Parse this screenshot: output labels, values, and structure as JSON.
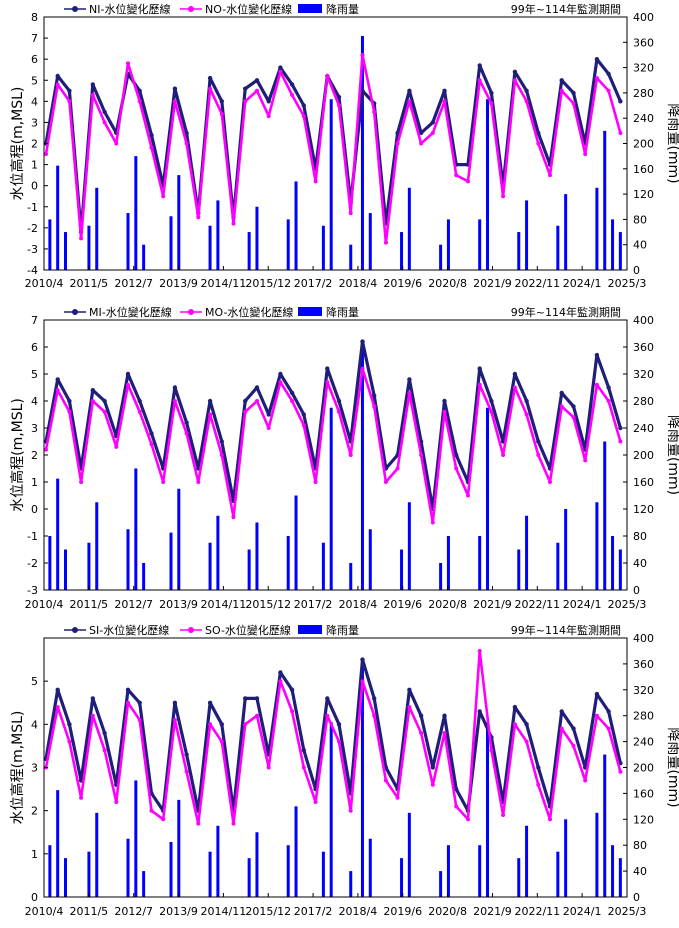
{
  "page": {
    "background": "#ffffff"
  },
  "colors": {
    "inner_series": "#1f1f7a",
    "outer_series": "#ff00ff",
    "rain": "#0000ff"
  },
  "chart_data": [
    {
      "type": "line",
      "id": "north",
      "xticks": [
        "2010/4",
        "2011/5",
        "2012/7",
        "2013/9",
        "2014/11",
        "2015/12",
        "2017/2",
        "2018/4",
        "2019/6",
        "2020/8",
        "2021/9",
        "2022/11",
        "2024/1",
        "2025/3"
      ],
      "xlim": [
        2010.25,
        2025.17
      ],
      "ylim": [
        -4,
        8
      ],
      "yticks": [
        -4,
        -3,
        -2,
        -1,
        0,
        1,
        2,
        3,
        4,
        5,
        6,
        7,
        8
      ],
      "y2lim": [
        0,
        400
      ],
      "y2ticks": [
        0,
        40,
        80,
        120,
        160,
        200,
        240,
        280,
        320,
        360,
        400
      ],
      "ylabel": "水位高程(m,MSL)",
      "y2label": "降雨量(mm)",
      "period_note": "99年~114年監測期間",
      "legend": [
        "NI-水位變化歷線",
        "NO-水位變化歷線",
        "降雨量"
      ],
      "series": [
        {
          "name": "NI-水位變化歷線",
          "color": "#1f1f7a",
          "x": [
            2010.3,
            2010.6,
            2010.9,
            2011.2,
            2011.5,
            2011.8,
            2012.1,
            2012.4,
            2012.7,
            2013.0,
            2013.3,
            2013.6,
            2013.9,
            2014.2,
            2014.5,
            2014.8,
            2015.1,
            2015.4,
            2015.7,
            2016.0,
            2016.3,
            2016.6,
            2016.9,
            2017.2,
            2017.5,
            2017.8,
            2018.1,
            2018.4,
            2018.7,
            2019.0,
            2019.3,
            2019.6,
            2019.9,
            2020.2,
            2020.5,
            2020.8,
            2021.1,
            2021.4,
            2021.7,
            2022.0,
            2022.3,
            2022.6,
            2022.9,
            2023.2,
            2023.5,
            2023.8,
            2024.1,
            2024.4,
            2024.7,
            2025.0
          ],
          "y": [
            2.0,
            5.2,
            4.5,
            -2.2,
            4.8,
            3.5,
            2.5,
            5.3,
            4.5,
            2.4,
            0.0,
            4.6,
            2.5,
            -1.3,
            5.1,
            4.0,
            -1.5,
            4.6,
            5.0,
            4.0,
            5.6,
            4.8,
            3.8,
            0.8,
            5.2,
            4.2,
            -0.8,
            4.5,
            3.9,
            -1.8,
            2.5,
            4.5,
            2.5,
            3.0,
            4.5,
            1.0,
            1.0,
            5.7,
            4.4,
            0.0,
            5.4,
            4.5,
            2.5,
            1.0,
            5.0,
            4.4,
            2.0,
            6.0,
            5.3,
            4.0
          ]
        },
        {
          "name": "NO-水位變化歷線",
          "color": "#ff00ff",
          "x": [
            2010.3,
            2010.6,
            2010.9,
            2011.2,
            2011.5,
            2011.8,
            2012.1,
            2012.4,
            2012.7,
            2013.0,
            2013.3,
            2013.6,
            2013.9,
            2014.2,
            2014.5,
            2014.8,
            2015.1,
            2015.4,
            2015.7,
            2016.0,
            2016.3,
            2016.6,
            2016.9,
            2017.2,
            2017.5,
            2017.8,
            2018.1,
            2018.4,
            2018.7,
            2019.0,
            2019.3,
            2019.6,
            2019.9,
            2020.2,
            2020.5,
            2020.8,
            2021.1,
            2021.4,
            2021.7,
            2022.0,
            2022.3,
            2022.6,
            2022.9,
            2023.2,
            2023.5,
            2023.8,
            2024.1,
            2024.4,
            2024.7,
            2025.0
          ],
          "y": [
            1.5,
            4.8,
            4.0,
            -2.5,
            4.3,
            3.0,
            2.0,
            5.8,
            4.0,
            1.8,
            -0.5,
            4.0,
            2.0,
            -1.5,
            4.6,
            3.4,
            -1.8,
            4.0,
            4.5,
            3.3,
            5.4,
            4.3,
            3.3,
            0.2,
            5.2,
            3.8,
            -1.3,
            6.2,
            3.5,
            -2.7,
            2.0,
            4.0,
            2.0,
            2.5,
            4.0,
            0.5,
            0.2,
            5.0,
            3.9,
            -0.5,
            5.0,
            4.0,
            2.0,
            0.5,
            4.5,
            3.9,
            1.5,
            5.1,
            4.5,
            2.5
          ]
        }
      ],
      "rain": {
        "name": "降雨量",
        "color": "#0000ff",
        "x": [
          2010.4,
          2010.6,
          2010.8,
          2011.4,
          2011.6,
          2012.4,
          2012.6,
          2012.8,
          2013.5,
          2013.7,
          2014.5,
          2014.7,
          2015.5,
          2015.7,
          2016.5,
          2016.7,
          2017.4,
          2017.6,
          2018.1,
          2018.4,
          2018.6,
          2019.4,
          2019.6,
          2020.4,
          2020.6,
          2021.4,
          2021.6,
          2022.4,
          2022.6,
          2023.4,
          2023.6,
          2024.4,
          2024.6,
          2024.8,
          2025.0
        ],
        "values": [
          80,
          165,
          60,
          70,
          130,
          90,
          180,
          40,
          85,
          150,
          70,
          110,
          60,
          100,
          80,
          140,
          70,
          270,
          40,
          370,
          90,
          60,
          130,
          40,
          80,
          80,
          270,
          60,
          110,
          70,
          120,
          130,
          220,
          80,
          60
        ]
      }
    },
    {
      "type": "line",
      "id": "middle",
      "xticks": [
        "2010/4",
        "2011/5",
        "2012/7",
        "2013/9",
        "2014/11",
        "2015/12",
        "2017/2",
        "2018/4",
        "2019/6",
        "2020/8",
        "2021/9",
        "2022/11",
        "2024/1",
        "2025/3"
      ],
      "xlim": [
        2010.25,
        2025.17
      ],
      "ylim": [
        -3,
        7
      ],
      "yticks": [
        -3,
        -2,
        -1,
        0,
        1,
        2,
        3,
        4,
        5,
        6,
        7
      ],
      "y2lim": [
        0,
        400
      ],
      "y2ticks": [
        0,
        40,
        80,
        120,
        160,
        200,
        240,
        280,
        320,
        360,
        400
      ],
      "ylabel": "水位高程(m,MSL)",
      "y2label": "降雨量(mm)",
      "period_note": "99年~114年監測期間",
      "legend": [
        "MI-水位變化歷線",
        "MO-水位變化歷線",
        "降雨量"
      ],
      "series": [
        {
          "name": "MI-水位變化歷線",
          "color": "#1f1f7a",
          "x": [
            2010.3,
            2010.6,
            2010.9,
            2011.2,
            2011.5,
            2011.8,
            2012.1,
            2012.4,
            2012.7,
            2013.0,
            2013.3,
            2013.6,
            2013.9,
            2014.2,
            2014.5,
            2014.8,
            2015.1,
            2015.4,
            2015.7,
            2016.0,
            2016.3,
            2016.6,
            2016.9,
            2017.2,
            2017.5,
            2017.8,
            2018.1,
            2018.4,
            2018.7,
            2019.0,
            2019.3,
            2019.6,
            2019.9,
            2020.2,
            2020.5,
            2020.8,
            2021.1,
            2021.4,
            2021.7,
            2022.0,
            2022.3,
            2022.6,
            2022.9,
            2023.2,
            2023.5,
            2023.8,
            2024.1,
            2024.4,
            2024.7,
            2025.0
          ],
          "y": [
            2.5,
            4.8,
            4.0,
            1.5,
            4.4,
            4.0,
            2.7,
            5.0,
            4.0,
            2.8,
            1.5,
            4.5,
            3.2,
            1.5,
            4.0,
            2.5,
            0.3,
            4.0,
            4.5,
            3.5,
            5.0,
            4.3,
            3.5,
            1.5,
            5.2,
            4.0,
            2.5,
            6.2,
            4.2,
            1.5,
            2.0,
            4.8,
            2.5,
            0.0,
            4.0,
            2.0,
            1.0,
            5.2,
            4.0,
            2.5,
            5.0,
            4.0,
            2.5,
            1.5,
            4.3,
            3.8,
            2.2,
            5.7,
            4.5,
            3.0
          ]
        },
        {
          "name": "MO-水位變化歷線",
          "color": "#ff00ff",
          "x": [
            2010.3,
            2010.6,
            2010.9,
            2011.2,
            2011.5,
            2011.8,
            2012.1,
            2012.4,
            2012.7,
            2013.0,
            2013.3,
            2013.6,
            2013.9,
            2014.2,
            2014.5,
            2014.8,
            2015.1,
            2015.4,
            2015.7,
            2016.0,
            2016.3,
            2016.6,
            2016.9,
            2017.2,
            2017.5,
            2017.8,
            2018.1,
            2018.4,
            2018.7,
            2019.0,
            2019.3,
            2019.6,
            2019.9,
            2020.2,
            2020.5,
            2020.8,
            2021.1,
            2021.4,
            2021.7,
            2022.0,
            2022.3,
            2022.6,
            2022.9,
            2023.2,
            2023.5,
            2023.8,
            2024.1,
            2024.4,
            2024.7,
            2025.0
          ],
          "y": [
            2.2,
            4.4,
            3.6,
            1.0,
            4.0,
            3.6,
            2.3,
            4.6,
            3.6,
            2.4,
            1.0,
            4.0,
            2.8,
            1.0,
            3.5,
            2.0,
            -0.3,
            3.6,
            4.0,
            3.0,
            4.7,
            4.0,
            3.1,
            1.0,
            4.7,
            3.6,
            2.0,
            5.2,
            3.8,
            1.0,
            1.5,
            4.3,
            2.0,
            -0.5,
            3.6,
            1.5,
            0.5,
            4.6,
            3.6,
            2.0,
            4.5,
            3.5,
            2.0,
            1.0,
            3.8,
            3.4,
            1.8,
            4.6,
            4.0,
            2.5
          ]
        }
      ],
      "rain": {
        "name": "降雨量",
        "color": "#0000ff",
        "x": [
          2010.4,
          2010.6,
          2010.8,
          2011.4,
          2011.6,
          2012.4,
          2012.6,
          2012.8,
          2013.5,
          2013.7,
          2014.5,
          2014.7,
          2015.5,
          2015.7,
          2016.5,
          2016.7,
          2017.4,
          2017.6,
          2018.1,
          2018.4,
          2018.6,
          2019.4,
          2019.6,
          2020.4,
          2020.6,
          2021.4,
          2021.6,
          2022.4,
          2022.6,
          2023.4,
          2023.6,
          2024.4,
          2024.6,
          2024.8,
          2025.0
        ],
        "values": [
          80,
          165,
          60,
          70,
          130,
          90,
          180,
          40,
          85,
          150,
          70,
          110,
          60,
          100,
          80,
          140,
          70,
          270,
          40,
          360,
          90,
          60,
          130,
          40,
          80,
          80,
          270,
          60,
          110,
          70,
          120,
          130,
          220,
          80,
          60
        ]
      }
    },
    {
      "type": "line",
      "id": "south",
      "xticks": [
        "2010/4",
        "2011/5",
        "2012/7",
        "2013/9",
        "2014/11",
        "2015/12",
        "2017/2",
        "2018/4",
        "2019/6",
        "2020/8",
        "2021/9",
        "2022/11",
        "2024/1",
        "2025/3"
      ],
      "xlim": [
        2010.25,
        2025.17
      ],
      "ylim": [
        0,
        6
      ],
      "yticks": [
        0,
        1,
        2,
        3,
        4,
        5
      ],
      "y2lim": [
        0,
        400
      ],
      "y2ticks": [
        0,
        40,
        80,
        120,
        160,
        200,
        240,
        280,
        320,
        360,
        400
      ],
      "ylabel": "水位高程(m,MSL)",
      "y2label": "降雨量(mm)",
      "period_note": "99年~114年監測期間",
      "legend": [
        "SI-水位變化歷線",
        "SO-水位變化歷線",
        "降雨量"
      ],
      "series": [
        {
          "name": "SI-水位變化歷線",
          "color": "#1f1f7a",
          "x": [
            2010.3,
            2010.6,
            2010.9,
            2011.2,
            2011.5,
            2011.8,
            2012.1,
            2012.4,
            2012.7,
            2013.0,
            2013.3,
            2013.6,
            2013.9,
            2014.2,
            2014.5,
            2014.8,
            2015.1,
            2015.4,
            2015.7,
            2016.0,
            2016.3,
            2016.6,
            2016.9,
            2017.2,
            2017.5,
            2017.8,
            2018.1,
            2018.4,
            2018.7,
            2019.0,
            2019.3,
            2019.6,
            2019.9,
            2020.2,
            2020.5,
            2020.8,
            2021.1,
            2021.4,
            2021.7,
            2022.0,
            2022.3,
            2022.6,
            2022.9,
            2023.2,
            2023.5,
            2023.8,
            2024.1,
            2024.4,
            2024.7,
            2025.0
          ],
          "y": [
            3.2,
            4.8,
            4.0,
            2.7,
            4.6,
            3.8,
            2.6,
            4.8,
            4.5,
            2.4,
            2.0,
            4.5,
            3.3,
            2.0,
            4.5,
            4.0,
            2.0,
            4.6,
            4.6,
            3.3,
            5.2,
            4.8,
            3.4,
            2.5,
            4.6,
            4.0,
            2.4,
            5.5,
            4.6,
            3.0,
            2.5,
            4.8,
            4.2,
            3.0,
            4.2,
            2.5,
            2.0,
            4.3,
            3.7,
            2.2,
            4.4,
            4.0,
            3.0,
            2.1,
            4.3,
            3.9,
            3.0,
            4.7,
            4.3,
            3.1
          ]
        },
        {
          "name": "SO-水位變化歷線",
          "color": "#ff00ff",
          "x": [
            2010.3,
            2010.6,
            2010.9,
            2011.2,
            2011.5,
            2011.8,
            2012.1,
            2012.4,
            2012.7,
            2013.0,
            2013.3,
            2013.6,
            2013.9,
            2014.2,
            2014.5,
            2014.8,
            2015.1,
            2015.4,
            2015.7,
            2016.0,
            2016.3,
            2016.6,
            2016.9,
            2017.2,
            2017.5,
            2017.8,
            2018.1,
            2018.4,
            2018.7,
            2019.0,
            2019.3,
            2019.6,
            2019.9,
            2020.2,
            2020.5,
            2020.8,
            2021.1,
            2021.4,
            2021.7,
            2022.0,
            2022.3,
            2022.6,
            2022.9,
            2023.2,
            2023.5,
            2023.8,
            2024.1,
            2024.4,
            2024.7,
            2025.0
          ],
          "y": [
            3.0,
            4.4,
            3.6,
            2.3,
            4.2,
            3.4,
            2.2,
            4.5,
            4.1,
            2.0,
            1.8,
            4.1,
            2.9,
            1.7,
            4.0,
            3.6,
            1.7,
            4.0,
            4.2,
            3.0,
            5.0,
            4.3,
            3.0,
            2.2,
            4.2,
            3.6,
            2.0,
            5.0,
            4.2,
            2.7,
            2.3,
            4.4,
            3.8,
            2.6,
            3.8,
            2.1,
            1.8,
            5.7,
            3.4,
            1.9,
            4.0,
            3.6,
            2.6,
            1.8,
            3.9,
            3.5,
            2.7,
            4.2,
            3.9,
            2.9
          ]
        }
      ],
      "rain": {
        "name": "降雨量",
        "color": "#0000ff",
        "x": [
          2010.4,
          2010.6,
          2010.8,
          2011.4,
          2011.6,
          2012.4,
          2012.6,
          2012.8,
          2013.5,
          2013.7,
          2014.5,
          2014.7,
          2015.5,
          2015.7,
          2016.5,
          2016.7,
          2017.4,
          2017.6,
          2018.1,
          2018.4,
          2018.6,
          2019.4,
          2019.6,
          2020.4,
          2020.6,
          2021.4,
          2021.6,
          2022.4,
          2022.6,
          2023.4,
          2023.6,
          2024.4,
          2024.6,
          2024.8,
          2025.0
        ],
        "values": [
          80,
          165,
          60,
          70,
          130,
          90,
          180,
          40,
          85,
          150,
          70,
          110,
          60,
          100,
          80,
          140,
          70,
          270,
          40,
          360,
          90,
          60,
          130,
          40,
          80,
          80,
          270,
          60,
          110,
          70,
          120,
          130,
          220,
          80,
          60
        ]
      }
    }
  ]
}
